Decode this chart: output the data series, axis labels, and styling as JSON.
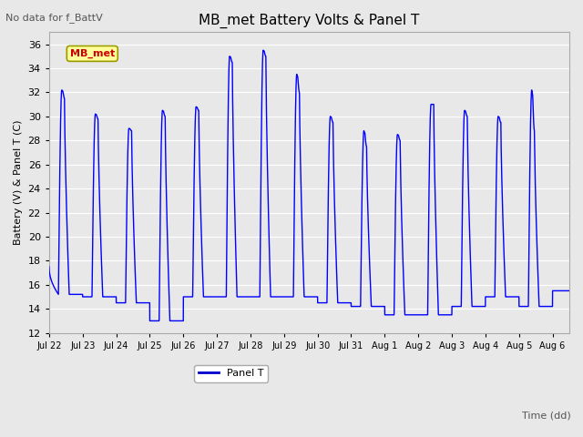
{
  "title": "MB_met Battery Volts & Panel T",
  "no_data_text": "No data for f_BattV",
  "xlabel": "Time (dd)",
  "ylabel": "Battery (V) & Panel T (C)",
  "ylim": [
    12,
    37
  ],
  "yticks": [
    12,
    14,
    16,
    18,
    20,
    22,
    24,
    26,
    28,
    30,
    32,
    34,
    36
  ],
  "legend_label": "Panel T",
  "legend_color": "#0000cc",
  "line_color": "#0000ff",
  "background_color": "#e8e8e8",
  "axes_bg_color": "#e8e8e8",
  "grid_color": "#ffffff",
  "mb_met_label": "MB_met",
  "mb_met_label_color": "#cc0000",
  "mb_met_box_facecolor": "#ffff99",
  "mb_met_box_edgecolor": "#999900",
  "x_tick_labels": [
    "Jul 22",
    "Jul 23",
    "Jul 24",
    "Jul 25",
    "Jul 26",
    "Jul 27",
    "Jul 28",
    "Jul 29",
    "Jul 30",
    "Jul 31",
    "Aug 1",
    "Aug 2",
    "Aug 3",
    "Aug 4",
    "Aug 5",
    "Aug 6"
  ],
  "x_tick_positions": [
    0,
    1,
    2,
    3,
    4,
    5,
    6,
    7,
    8,
    9,
    10,
    11,
    12,
    13,
    14,
    15
  ],
  "night_temps": [
    15.2,
    15.0,
    14.5,
    13.0,
    15.0,
    15.0,
    15.0,
    15.0,
    14.5,
    14.2,
    13.5,
    13.5,
    14.2,
    15.0,
    14.2,
    15.5
  ],
  "peak1_temps": [
    32.2,
    30.2,
    29.0,
    30.5,
    30.8,
    35.0,
    35.5,
    33.5,
    30.0,
    28.8,
    28.5,
    31.0,
    30.5,
    30.0,
    32.2,
    15.5
  ],
  "peak2_temps": [
    31.5,
    29.8,
    28.8,
    30.0,
    30.5,
    34.5,
    35.0,
    32.0,
    29.5,
    27.5,
    28.0,
    31.0,
    30.0,
    29.5,
    28.8,
    15.5
  ],
  "xlim": [
    0,
    15.5
  ],
  "figwidth": 6.4,
  "figheight": 4.8,
  "dpi": 100
}
